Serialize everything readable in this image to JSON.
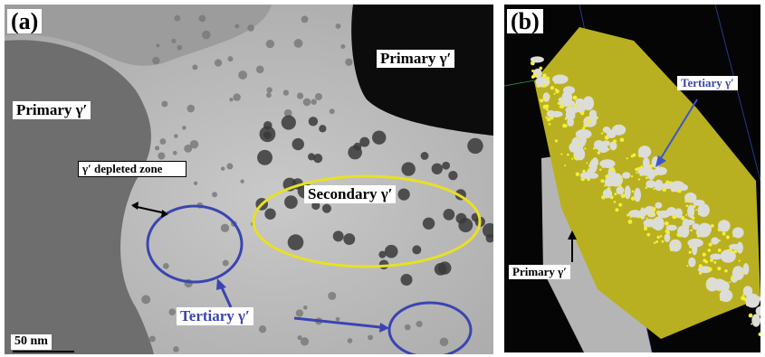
{
  "panels": {
    "a": {
      "label": "(a)",
      "primary_left": "Primary γ′",
      "primary_right": "Primary γ′",
      "depleted_zone": "γ′ depleted zone",
      "secondary": "Secondary γ′",
      "tertiary": "Tertiary γ′",
      "scale_bar": "50 nm"
    },
    "b": {
      "label": "(b)",
      "tertiary": "Tertiary γ′",
      "primary": "Primary γ′"
    }
  }
}
